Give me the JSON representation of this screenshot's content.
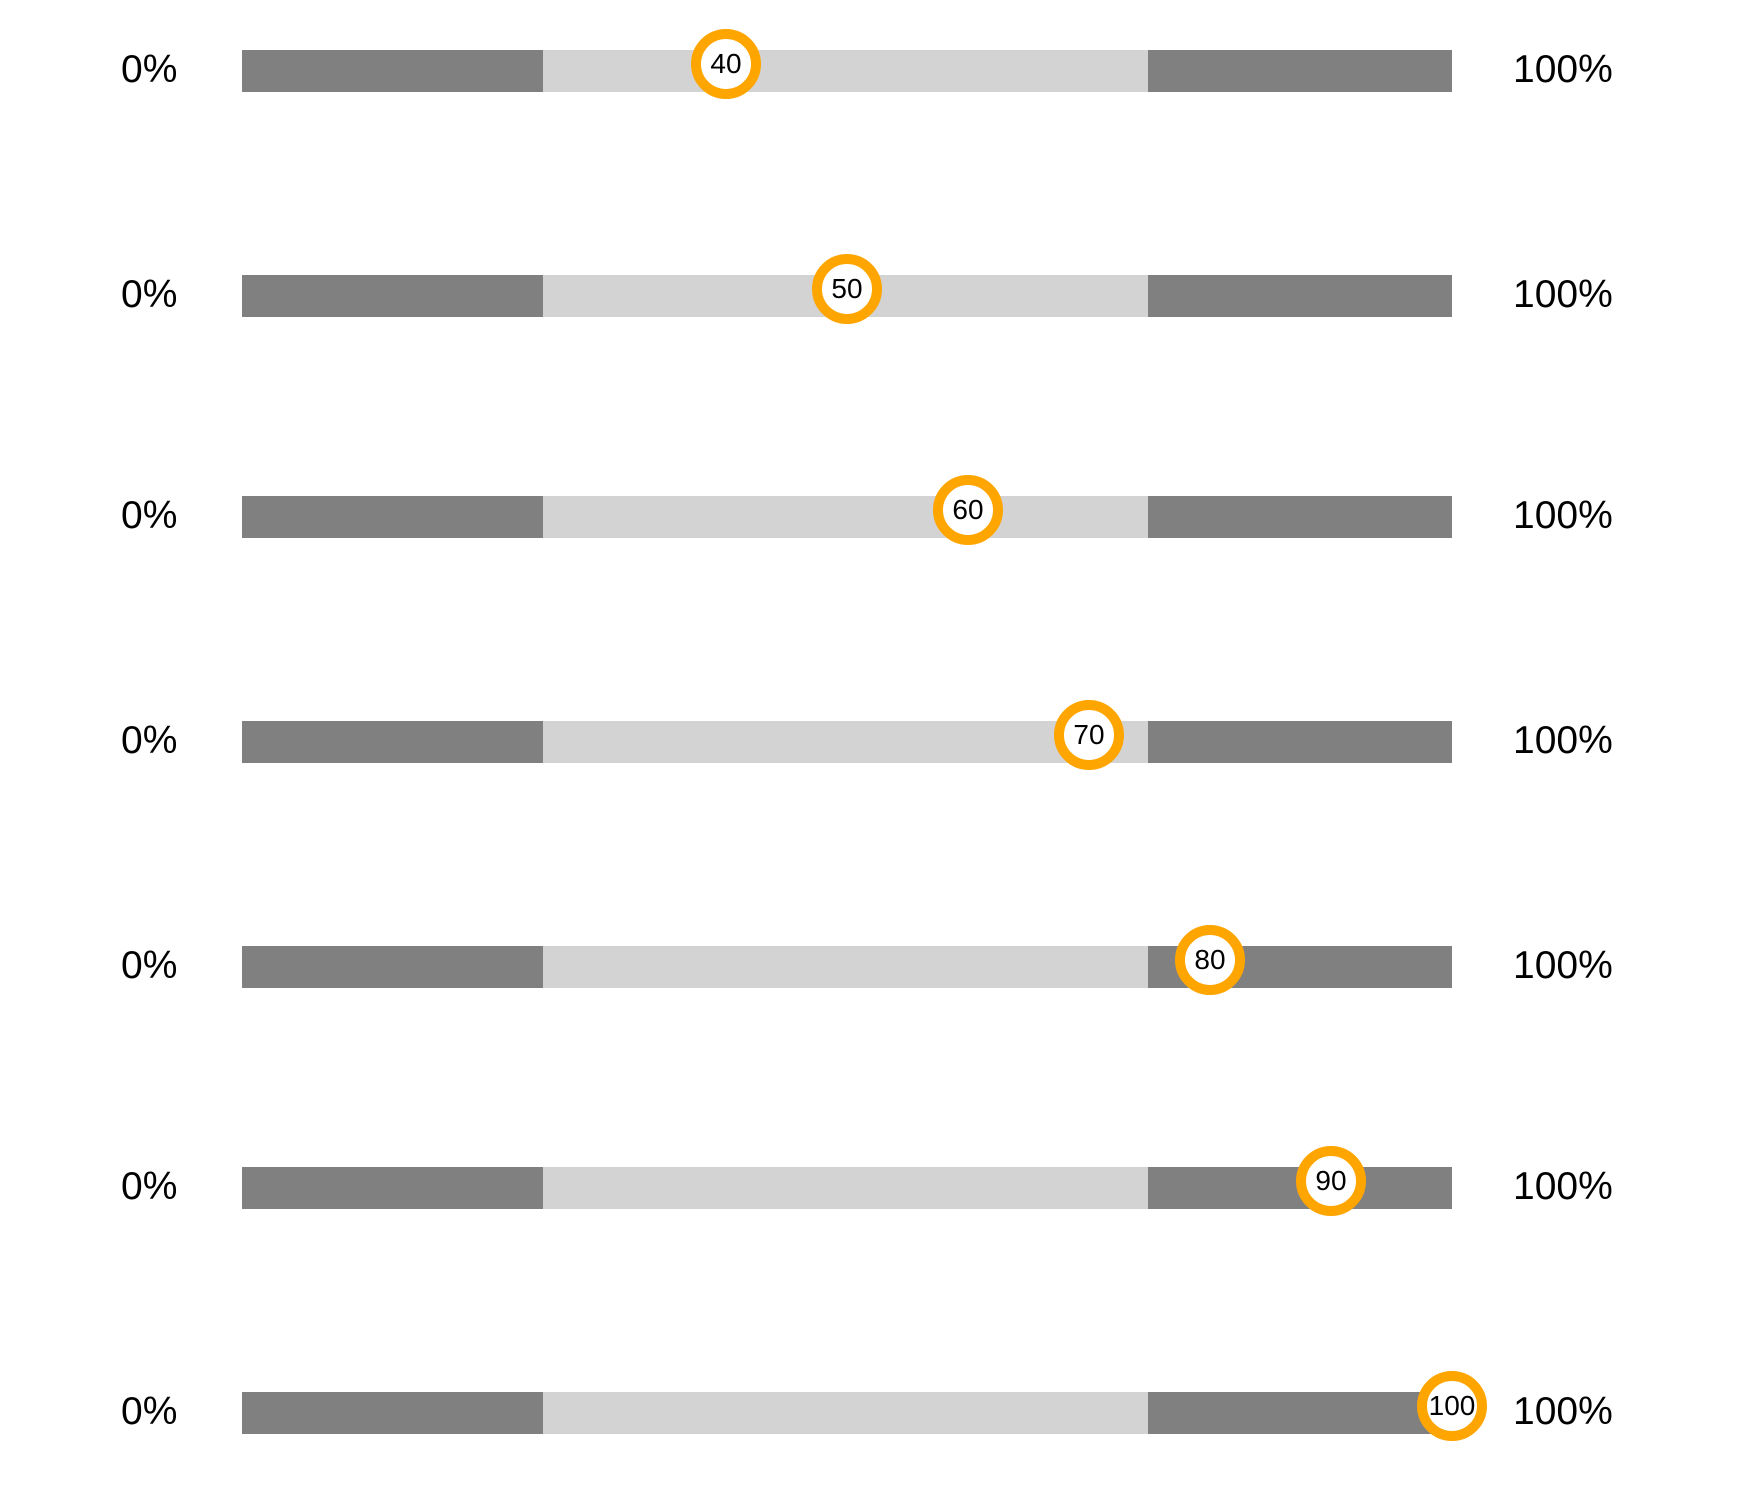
{
  "colors": {
    "track_outer": "#808080",
    "track_inner": "#d3d3d3",
    "thumb_border": "#ffa500",
    "thumb_fill": "#ffffff",
    "text": "#000000"
  },
  "sliders": [
    {
      "min_label": "0%",
      "max_label": "100%",
      "value": 40,
      "value_label": "40"
    },
    {
      "min_label": "0%",
      "max_label": "100%",
      "value": 50,
      "value_label": "50"
    },
    {
      "min_label": "0%",
      "max_label": "100%",
      "value": 60,
      "value_label": "60"
    },
    {
      "min_label": "0%",
      "max_label": "100%",
      "value": 70,
      "value_label": "70"
    },
    {
      "min_label": "0%",
      "max_label": "100%",
      "value": 80,
      "value_label": "80"
    },
    {
      "min_label": "0%",
      "max_label": "100%",
      "value": 90,
      "value_label": "90"
    },
    {
      "min_label": "0%",
      "max_label": "100%",
      "value": 100,
      "value_label": "100"
    }
  ]
}
